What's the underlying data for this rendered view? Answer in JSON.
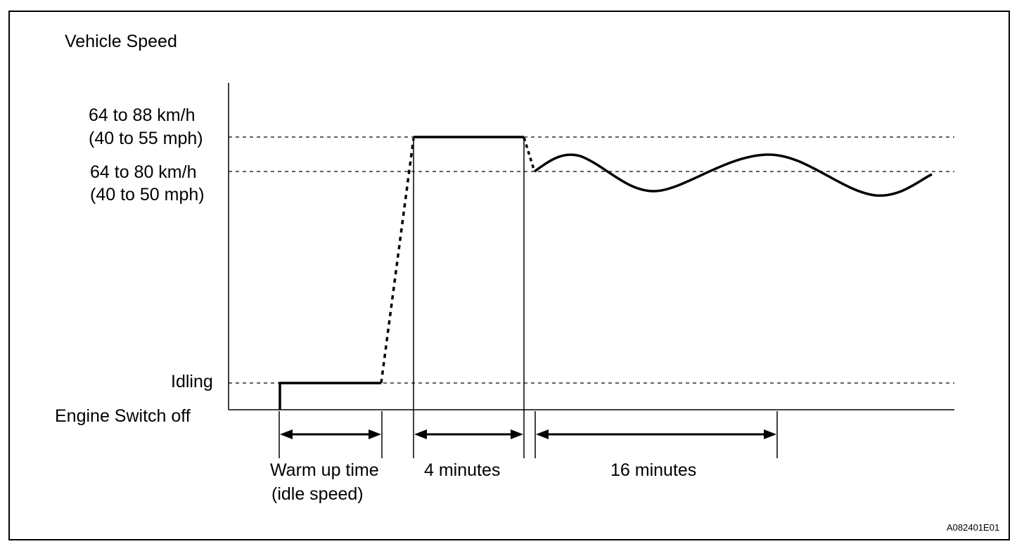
{
  "diagram": {
    "y_axis_title": "Vehicle Speed",
    "levels": [
      {
        "id": "high",
        "line1": "64 to 88 km/h",
        "line2": "(40 to 55 mph)"
      },
      {
        "id": "mid",
        "line1": "64 to 80 km/h",
        "line2": "(40 to 50 mph)"
      },
      {
        "id": "idle",
        "line1": "Idling"
      },
      {
        "id": "off",
        "line1": "Engine Switch off"
      }
    ],
    "phases": [
      {
        "id": "warmup",
        "line1": "Warm up time",
        "line2": "(idle speed)"
      },
      {
        "id": "four",
        "line1": "4 minutes"
      },
      {
        "id": "sixteen",
        "line1": "16 minutes"
      }
    ],
    "figure_code": "A082401E01",
    "colors": {
      "ink": "#000000",
      "background": "#ffffff"
    }
  }
}
